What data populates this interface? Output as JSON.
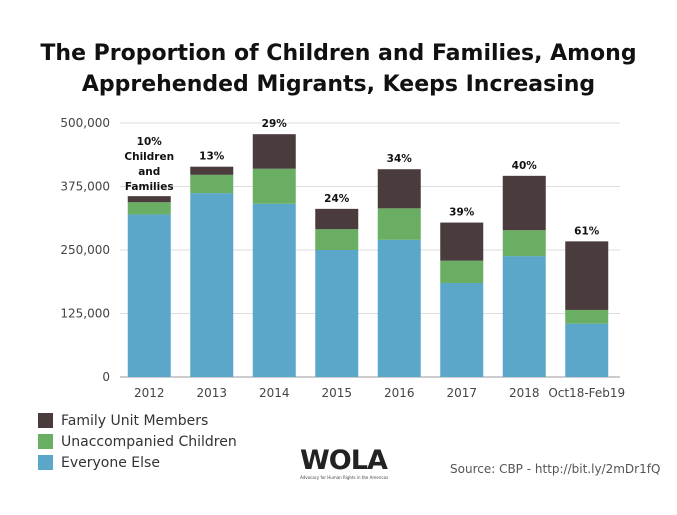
{
  "chart_data": {
    "type": "bar",
    "stacked": true,
    "title": "The Proportion of Children and Families, Among Apprehended Migrants, Keeps Increasing",
    "title_lines": [
      "The Proportion of Children and Families, Among",
      "Apprehended Migrants, Keeps Increasing"
    ],
    "categories": [
      "2012",
      "2013",
      "2014",
      "2015",
      "2016",
      "2017",
      "2018",
      "Oct18-Feb19"
    ],
    "series": [
      {
        "name": "Everyone Else",
        "color": "#5ba7c9",
        "values": [
          320000,
          362000,
          341000,
          250000,
          270000,
          185000,
          238000,
          105000
        ]
      },
      {
        "name": "Unaccompanied Children",
        "color": "#6aae64",
        "values": [
          24000,
          36000,
          69000,
          41000,
          62000,
          44000,
          51000,
          27000
        ]
      },
      {
        "name": "Family Unit Members",
        "color": "#4a3c3c",
        "values": [
          12000,
          16000,
          68000,
          40000,
          77000,
          75000,
          107000,
          135000
        ]
      }
    ],
    "data_labels": [
      "10%",
      "13%",
      "29%",
      "24%",
      "34%",
      "39%",
      "40%",
      "61%"
    ],
    "first_label_extra": [
      "Children",
      "and",
      "Families"
    ],
    "ylim": [
      0,
      500000
    ],
    "yticks": [
      "0",
      "125,000",
      "250,000",
      "375,000",
      "500,000"
    ],
    "ytick_values": [
      0,
      125000,
      250000,
      375000,
      500000
    ],
    "grid": true,
    "legend_placement": "bottom-left",
    "legend_order": [
      "Family Unit Members",
      "Unaccompanied Children",
      "Everyone Else"
    ]
  },
  "logo": {
    "text": "WOLA",
    "tagline": "Advocacy for Human Rights in the Americas"
  },
  "source": "Source: CBP - http://bit.ly/2mDr1fQ"
}
